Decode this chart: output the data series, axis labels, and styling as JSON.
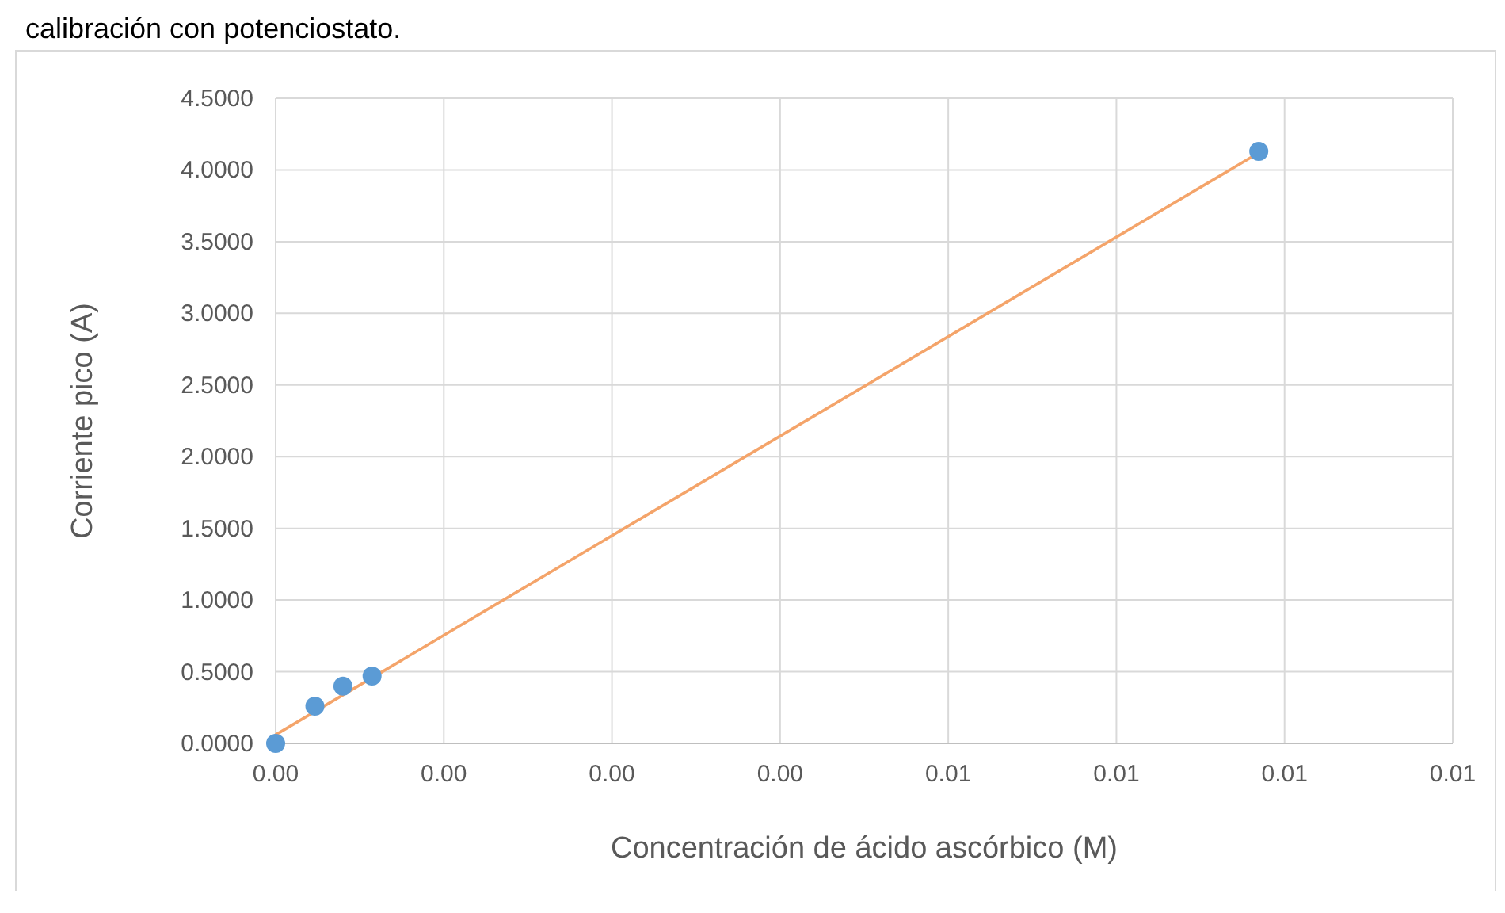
{
  "chart_data": {
    "type": "scatter",
    "title": "calibración con potenciostato.",
    "xlabel": "Concentración de ácido ascórbico (M)",
    "ylabel": "Corriente pico (A)",
    "series": [
      {
        "type": "scatter",
        "color": "#5b9bd5",
        "x": [
          0,
          0.00035,
          0.0006,
          0.00086,
          0.00877
        ],
        "values": [
          0.0,
          0.26,
          0.4,
          0.47,
          4.13
        ]
      },
      {
        "type": "line",
        "marker": "none",
        "color": "#f4a46a",
        "x": [
          0,
          0.00877
        ],
        "values": [
          0.06,
          4.12
        ]
      }
    ],
    "xlim": [
      0,
      0.0105
    ],
    "xticks": [
      {
        "value": 0,
        "label": "0.00"
      },
      {
        "value": 0.0015,
        "label": "0.00"
      },
      {
        "value": 0.003,
        "label": "0.00"
      },
      {
        "value": 0.0045,
        "label": "0.00"
      },
      {
        "value": 0.006,
        "label": "0.01"
      },
      {
        "value": 0.0075,
        "label": "0.01"
      },
      {
        "value": 0.009,
        "label": "0.01"
      },
      {
        "value": 0.0105,
        "label": "0.01"
      }
    ],
    "ylim": [
      0,
      4.5
    ],
    "yticks": [
      {
        "value": 0,
        "label": "0.0000"
      },
      {
        "value": 0.5,
        "label": "0.5000"
      },
      {
        "value": 1,
        "label": "1.0000"
      },
      {
        "value": 1.5,
        "label": "1.5000"
      },
      {
        "value": 2,
        "label": "2.0000"
      },
      {
        "value": 2.5,
        "label": "2.5000"
      },
      {
        "value": 3,
        "label": "3.0000"
      },
      {
        "value": 3.5,
        "label": "3.5000"
      },
      {
        "value": 4,
        "label": "4.0000"
      },
      {
        "value": 4.5,
        "label": "4.5000"
      }
    ],
    "grid": true,
    "marker": "circle"
  }
}
